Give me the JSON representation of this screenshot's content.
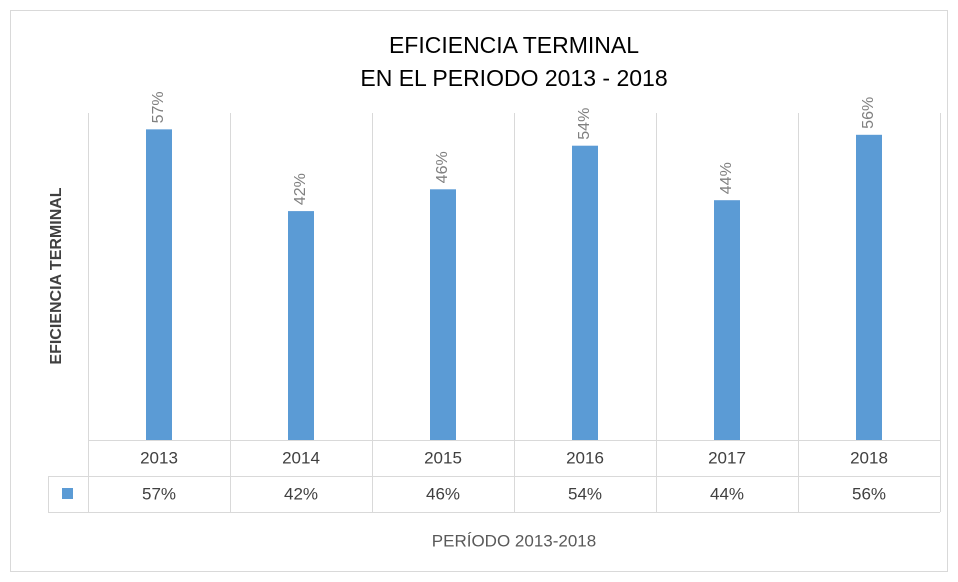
{
  "chart_data": {
    "type": "bar",
    "title": [
      "EFICIENCIA TERMINAL",
      "EN EL PERIODO 2013 - 2018"
    ],
    "y_label": "EFICIENCIA TERMINAL",
    "x_label": "PERÍODO  2013-2018",
    "categories": [
      "2013",
      "2014",
      "2015",
      "2016",
      "2017",
      "2018"
    ],
    "values": [
      57,
      42,
      46,
      54,
      44,
      56
    ],
    "value_labels": [
      "57%",
      "42%",
      "46%",
      "54%",
      "44%",
      "56%"
    ],
    "color": "#5b9bd5",
    "ylim": [
      0,
      60
    ],
    "data_table": true
  }
}
